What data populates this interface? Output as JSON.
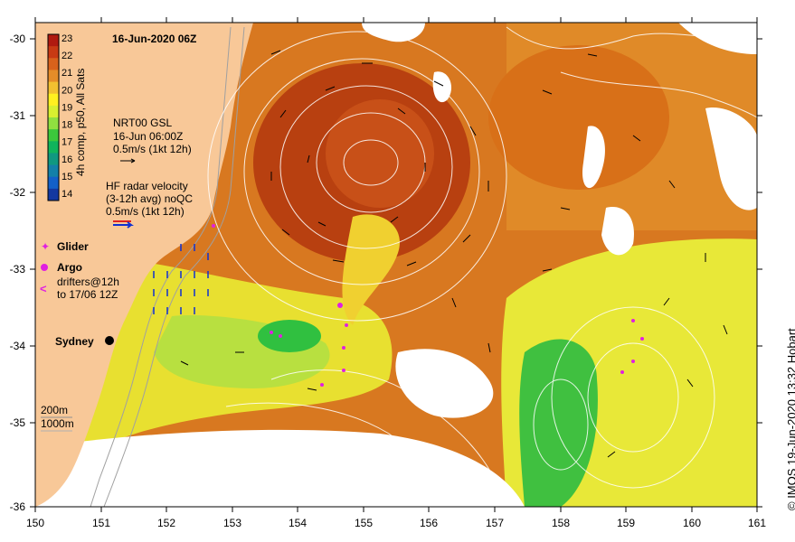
{
  "map": {
    "title": "16-Jun-2020 06Z",
    "credit": "© IMOS 19-Jun-2020 13:32 Hobart",
    "lon_ticks": [
      "150",
      "151",
      "152",
      "153",
      "154",
      "155",
      "156",
      "157",
      "158",
      "159",
      "160",
      "161"
    ],
    "lat_ticks": [
      "-30",
      "-31",
      "-32",
      "-33",
      "-34",
      "-35",
      "-36"
    ],
    "colorbar": {
      "label": "4h comp, p50, All Sats",
      "ticks": [
        "23",
        "22",
        "21",
        "20",
        "19",
        "18",
        "17",
        "16",
        "15",
        "14"
      ],
      "colors": [
        "#b01a10",
        "#c83a14",
        "#d8621c",
        "#e58c28",
        "#f2c030",
        "#fff020",
        "#d8f030",
        "#90e040",
        "#3cc83c",
        "#10b45c",
        "#109880",
        "#1480a8",
        "#1460c8",
        "#1438a0"
      ]
    },
    "gsl": {
      "line1": "NRT00 GSL",
      "line2": "16-Jun 06:00Z",
      "line3": "0.5m/s (1kt 12h)"
    },
    "radar": {
      "line1": "HF radar velocity",
      "line2": "(3-12h avg) noQC",
      "line3": "0.5m/s (1kt 12h)"
    },
    "symbols": {
      "glider": "Glider",
      "argo": "Argo",
      "drifters1": "drifters@12h",
      "drifters2": "to 17/06 12Z"
    },
    "city": "Sydney",
    "depth": {
      "d1": "200m",
      "d2": "1000m"
    }
  }
}
